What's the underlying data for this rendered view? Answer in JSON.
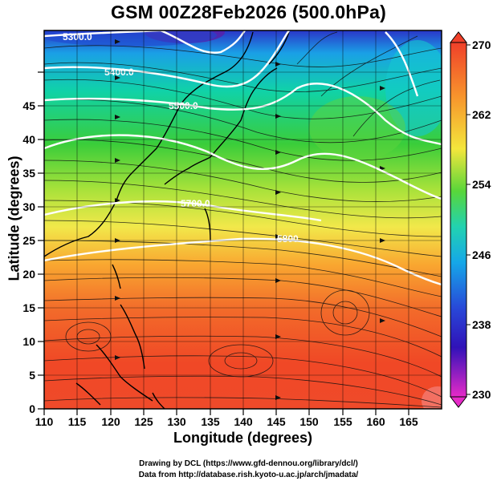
{
  "title": "GSM 00Z28Feb2026 (500.0hPa)",
  "x_axis": {
    "label": "Longitude (degrees)",
    "ticks": [
      "110",
      "115",
      "120",
      "125",
      "130",
      "135",
      "140",
      "145",
      "150",
      "155",
      "160",
      "165"
    ]
  },
  "y_axis": {
    "label": "Latitude (degrees)",
    "ticks": [
      "0",
      "5",
      "10",
      "15",
      "20",
      "25",
      "30",
      "35",
      "40",
      "45"
    ]
  },
  "colorbar": {
    "labels": [
      "270",
      "262",
      "254",
      "246",
      "238",
      "230"
    ],
    "min": 230,
    "max": 270
  },
  "contours": [
    {
      "label": "5300.0"
    },
    {
      "label": "5400.0"
    },
    {
      "label": "5500.0"
    },
    {
      "label": "5700.0"
    },
    {
      "label": "5800"
    }
  ],
  "credits": {
    "line1": "Drawing by DCL (https://www.gfd-dennou.org/library/dcl/)",
    "line2": "Data from http://database.rish.kyoto-u.ac.jp/arch/jmadata/"
  }
}
